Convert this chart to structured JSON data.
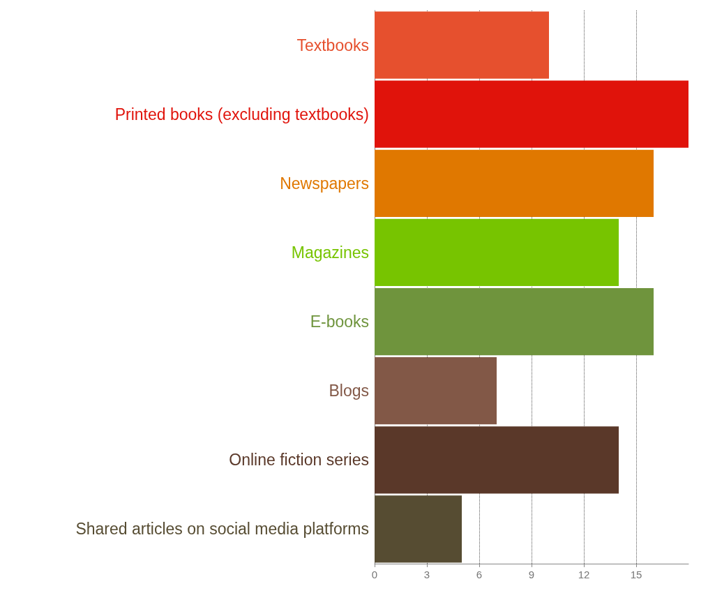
{
  "chart_data": {
    "type": "bar",
    "orientation": "horizontal",
    "categories": [
      "Textbooks",
      "Printed books (excluding textbooks)",
      "Newspapers",
      "Magazines",
      "E-books",
      "Blogs",
      "Online fiction series",
      "Shared articles on social media platforms"
    ],
    "values": [
      10,
      18,
      16,
      14,
      16,
      7,
      14,
      5
    ],
    "colors": [
      "#e6502e",
      "#e0130b",
      "#e07800",
      "#77c400",
      "#6f943d",
      "#825847",
      "#5a3829",
      "#564c32"
    ],
    "xlim": [
      0,
      18
    ],
    "xticks": [
      0,
      3,
      6,
      9,
      12,
      15
    ],
    "grid": "x"
  }
}
